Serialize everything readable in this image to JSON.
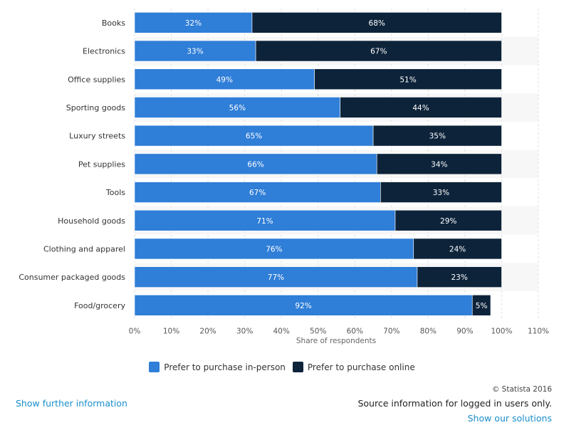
{
  "chart_data": {
    "type": "bar",
    "orientation": "horizontal",
    "stacked": true,
    "categories": [
      "Books",
      "Electronics",
      "Office supplies",
      "Sporting goods",
      "Luxury streets",
      "Pet supplies",
      "Tools",
      "Household goods",
      "Clothing and apparel",
      "Consumer packaged goods",
      "Food/grocery"
    ],
    "series": [
      {
        "name": "Prefer to purchase in-person",
        "color": "#2f7ed8",
        "values": [
          32,
          33,
          49,
          56,
          65,
          66,
          67,
          71,
          76,
          77,
          92
        ]
      },
      {
        "name": "Prefer to purchase online",
        "color": "#0d233a",
        "values": [
          68,
          67,
          51,
          44,
          35,
          34,
          33,
          29,
          24,
          23,
          5
        ]
      }
    ],
    "value_suffix": "%",
    "xlabel": "Share of respondents",
    "xlim": [
      0,
      110
    ],
    "xticks": [
      0,
      10,
      20,
      30,
      40,
      50,
      60,
      70,
      80,
      90,
      100,
      110
    ],
    "tick_suffix": "%",
    "grid": true,
    "legend_position": "bottom-center"
  },
  "footer": {
    "further_info": "Show further information",
    "copyright": "© Statista 2016",
    "source_note": "Source information for logged in users only.",
    "solutions": "Show our solutions"
  }
}
